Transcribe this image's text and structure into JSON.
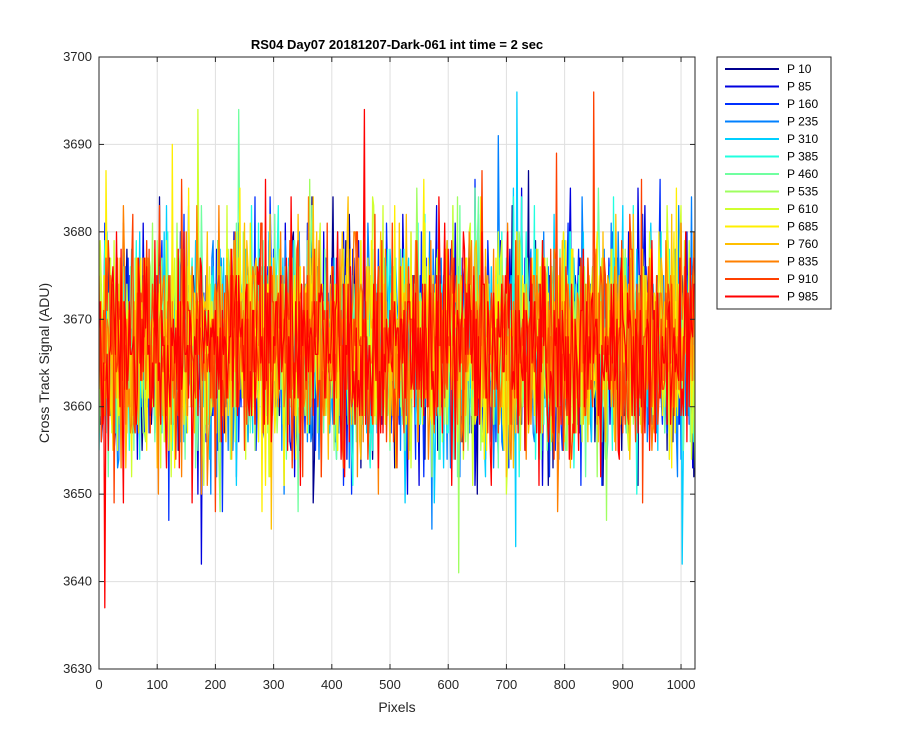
{
  "chart_data": {
    "type": "line",
    "title": "RS04 Day07 20181207-Dark-061 int time = 2 sec",
    "xlabel": "Pixels",
    "ylabel": "Cross Track Signal (ADU)",
    "xlim": [
      0,
      1024
    ],
    "ylim": [
      3630,
      3700
    ],
    "xticks": [
      0,
      100,
      200,
      300,
      400,
      500,
      600,
      700,
      800,
      900,
      1000
    ],
    "yticks": [
      3630,
      3640,
      3650,
      3660,
      3670,
      3680,
      3690,
      3700
    ],
    "grid": true,
    "legend_position": "outside-right",
    "approximate_distribution": {
      "center": 3667,
      "typical_low": 3655,
      "typical_high": 3680
    },
    "notable_extremes": [
      {
        "series": "P 985",
        "x": 10,
        "y": 3637
      },
      {
        "series": "P 985",
        "x": 455,
        "y": 3694
      },
      {
        "series": "P 910",
        "x": 850,
        "y": 3696
      },
      {
        "series": "P 310",
        "x": 718,
        "y": 3696
      },
      {
        "series": "P 610",
        "x": 170,
        "y": 3694
      },
      {
        "series": "P 460",
        "x": 240,
        "y": 3694
      },
      {
        "series": "P 535",
        "x": 617,
        "y": 3641
      },
      {
        "series": "P 85",
        "x": 175,
        "y": 3642
      }
    ],
    "series": [
      {
        "name": "P 10",
        "color": "#00008f"
      },
      {
        "name": "P 85",
        "color": "#0000df"
      },
      {
        "name": "P 160",
        "color": "#0030ff"
      },
      {
        "name": "P 235",
        "color": "#0080ff"
      },
      {
        "name": "P 310",
        "color": "#00cfff"
      },
      {
        "name": "P 385",
        "color": "#20ffdf"
      },
      {
        "name": "P 460",
        "color": "#70ffa0"
      },
      {
        "name": "P 535",
        "color": "#9fff60"
      },
      {
        "name": "P 610",
        "color": "#cfff30"
      },
      {
        "name": "P 685",
        "color": "#ffef00"
      },
      {
        "name": "P 760",
        "color": "#ffbf00"
      },
      {
        "name": "P 835",
        "color": "#ff8000"
      },
      {
        "name": "P 910",
        "color": "#ff4000"
      },
      {
        "name": "P 985",
        "color": "#ff0000"
      }
    ]
  }
}
